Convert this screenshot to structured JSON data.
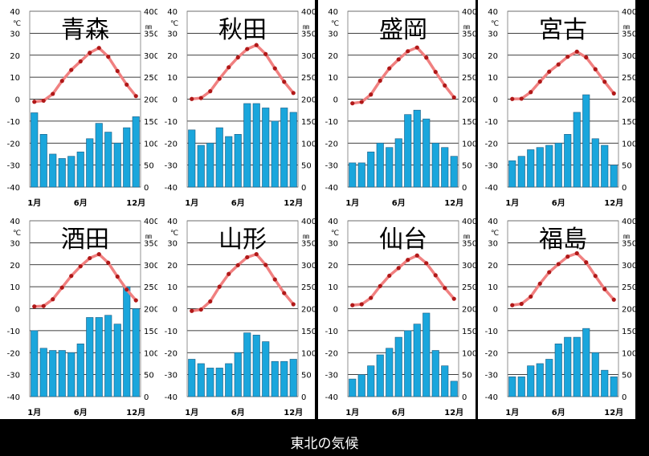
{
  "caption": "東北の気候",
  "colors": {
    "precip_bar": "#1aa6dc",
    "temp_line": "#f08080",
    "temp_dot": "#b01818"
  },
  "axis_labels": {
    "temp_unit": "℃",
    "precip_unit": "㎜",
    "temp_ticks": [
      "40",
      "30",
      "20",
      "10",
      "0",
      "-10",
      "-20",
      "-30",
      "-40"
    ],
    "precip_ticks": [
      "400",
      "350",
      "300",
      "250",
      "200",
      "150",
      "100",
      "50",
      "0"
    ],
    "month_ticks": [
      "1月",
      "6月",
      "12月"
    ]
  },
  "chart_data": [
    {
      "type": "bar+line",
      "title": "青森",
      "temp_axis": [
        -40,
        40
      ],
      "precip_axis": [
        0,
        400
      ],
      "temperature": [
        -1.2,
        -0.7,
        2.4,
        8.3,
        13.3,
        17.2,
        21.1,
        23.3,
        19.3,
        12.8,
        6.6,
        1.4
      ],
      "precipitation": [
        169,
        120,
        75,
        65,
        70,
        80,
        110,
        145,
        125,
        100,
        135,
        160
      ]
    },
    {
      "type": "bar+line",
      "title": "秋田",
      "temp_axis": [
        -40,
        40
      ],
      "precip_axis": [
        0,
        400
      ],
      "temperature": [
        0.1,
        0.5,
        3.6,
        9.3,
        14.5,
        19.0,
        22.8,
        24.6,
        20.5,
        14.0,
        7.9,
        2.8
      ],
      "precipitation": [
        130,
        95,
        100,
        135,
        115,
        120,
        190,
        190,
        180,
        150,
        180,
        170
      ]
    },
    {
      "type": "bar+line",
      "title": "盛岡",
      "temp_axis": [
        -40,
        40
      ],
      "precip_axis": [
        0,
        400
      ],
      "temperature": [
        -1.9,
        -1.3,
        2.1,
        8.4,
        14.0,
        18.1,
        21.8,
        23.5,
        18.9,
        12.4,
        6.2,
        0.8
      ],
      "precipitation": [
        55,
        55,
        80,
        100,
        90,
        110,
        165,
        175,
        155,
        100,
        90,
        70
      ]
    },
    {
      "type": "bar+line",
      "title": "宮古",
      "temp_axis": [
        -40,
        40
      ],
      "precip_axis": [
        0,
        400
      ],
      "temperature": [
        0.1,
        0.2,
        3.2,
        8.0,
        12.5,
        15.8,
        19.3,
        21.6,
        19.0,
        13.6,
        7.9,
        2.6
      ],
      "precipitation": [
        60,
        70,
        85,
        90,
        95,
        100,
        120,
        170,
        210,
        110,
        95,
        50
      ]
    },
    {
      "type": "bar+line",
      "title": "酒田",
      "temp_axis": [
        -40,
        40
      ],
      "precip_axis": [
        0,
        400
      ],
      "temperature": [
        1.0,
        1.2,
        4.3,
        9.6,
        14.9,
        19.3,
        23.0,
        24.8,
        20.9,
        14.6,
        8.7,
        3.8
      ],
      "precipitation": [
        150,
        110,
        105,
        105,
        100,
        120,
        180,
        180,
        185,
        165,
        250,
        200
      ]
    },
    {
      "type": "bar+line",
      "title": "山形",
      "temp_axis": [
        -40,
        40
      ],
      "precip_axis": [
        0,
        400
      ],
      "temperature": [
        -1.0,
        -0.4,
        3.3,
        10.0,
        15.8,
        19.8,
        23.4,
        24.8,
        19.9,
        13.3,
        7.1,
        2.0
      ],
      "precipitation": [
        85,
        75,
        65,
        65,
        75,
        100,
        145,
        140,
        125,
        80,
        80,
        85
      ]
    },
    {
      "type": "bar+line",
      "title": "仙台",
      "temp_axis": [
        -40,
        40
      ],
      "precip_axis": [
        0,
        400
      ],
      "temperature": [
        1.6,
        2.0,
        4.9,
        10.3,
        15.0,
        18.5,
        22.2,
        24.2,
        20.7,
        15.2,
        9.4,
        4.5
      ],
      "precipitation": [
        40,
        50,
        70,
        95,
        110,
        135,
        150,
        165,
        190,
        105,
        70,
        35
      ]
    },
    {
      "type": "bar+line",
      "title": "福島",
      "temp_axis": [
        -40,
        40
      ],
      "precip_axis": [
        0,
        400
      ],
      "temperature": [
        1.6,
        2.2,
        5.5,
        11.4,
        16.6,
        20.3,
        23.7,
        25.2,
        21.1,
        14.9,
        8.9,
        4.1
      ],
      "precipitation": [
        45,
        45,
        70,
        75,
        85,
        120,
        135,
        135,
        155,
        100,
        60,
        45
      ]
    }
  ]
}
